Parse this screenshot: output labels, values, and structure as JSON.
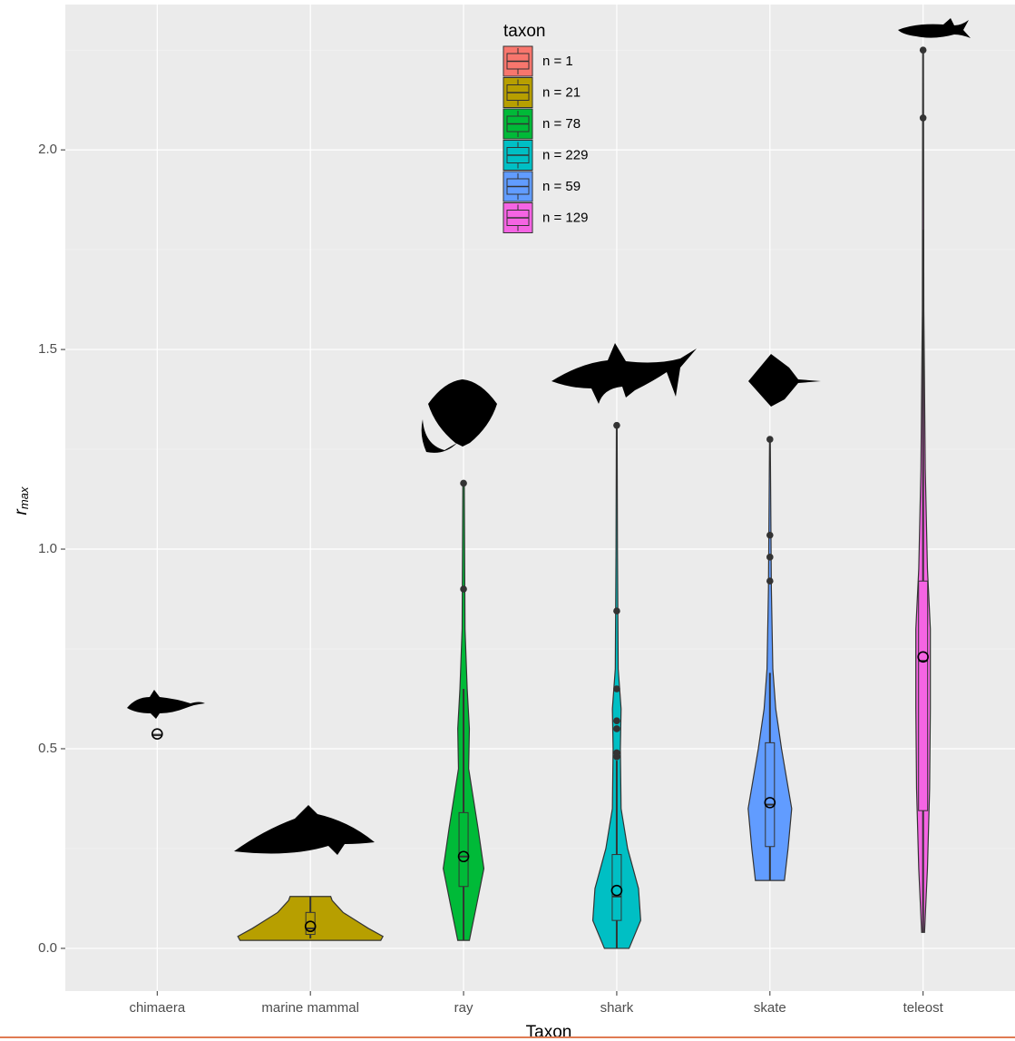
{
  "chart_data": {
    "type": "violin",
    "x_label": "Taxon",
    "y_label": "r",
    "y_label_sub": "max",
    "legend_title": "taxon",
    "legend_position": "top",
    "categories": [
      "chimaera",
      "marine mammal",
      "ray",
      "shark",
      "skate",
      "teleost"
    ],
    "ylim": [
      -0.107,
      2.364
    ],
    "yticks": [
      {
        "value": 0,
        "label": "0.0"
      },
      0.5,
      {
        "value": 1,
        "label": "1.0"
      },
      1.5,
      {
        "value": 2,
        "label": "2.0"
      }
    ],
    "minor_yticks": [
      0.25,
      0.75,
      1.25,
      1.75,
      2.25
    ],
    "grid": true,
    "series": [
      {
        "name": "n = 1",
        "color": "#F8766D",
        "box": [
          0.535,
          0.535,
          0.535,
          0.535,
          0.535
        ],
        "mean": 0.537,
        "outliers": [],
        "violin": {
          "y": [],
          "density": []
        }
      },
      {
        "name": "n = 21",
        "color": "#B79F00",
        "box": [
          0.025,
          0.035,
          0.05,
          0.09,
          0.13
        ],
        "mean": 0.055,
        "outliers": [],
        "violin": {
          "y": [
            0.02,
            0.03,
            0.05,
            0.09,
            0.12,
            0.13
          ],
          "density": [
            0.97,
            1.0,
            0.8,
            0.45,
            0.3,
            0.28
          ]
        }
      },
      {
        "name": "n = 78",
        "color": "#00BA38",
        "box": [
          0.02,
          0.155,
          0.23,
          0.34,
          0.65
        ],
        "mean": 0.23,
        "outliers": [
          0.9,
          1.165
        ],
        "violin": {
          "y": [
            0.02,
            0.1,
            0.2,
            0.3,
            0.45,
            0.55,
            0.65,
            0.8,
            1.165
          ],
          "density": [
            0.08,
            0.17,
            0.28,
            0.2,
            0.07,
            0.08,
            0.05,
            0.02,
            0.01
          ]
        }
      },
      {
        "name": "n = 229",
        "color": "#00BFC4",
        "box": [
          0.0,
          0.07,
          0.13,
          0.235,
          0.47
        ],
        "mean": 0.145,
        "outliers": [
          0.48,
          0.49,
          0.55,
          0.57,
          0.65,
          0.845,
          1.31
        ],
        "violin": {
          "y": [
            0.0,
            0.07,
            0.15,
            0.25,
            0.35,
            0.5,
            0.6,
            0.7,
            1.0,
            1.31
          ],
          "density": [
            0.17,
            0.33,
            0.3,
            0.15,
            0.06,
            0.05,
            0.06,
            0.02,
            0.01,
            0.005
          ]
        }
      },
      {
        "name": "n = 59",
        "color": "#619CFF",
        "box": [
          0.17,
          0.255,
          0.36,
          0.515,
          0.69
        ],
        "mean": 0.365,
        "outliers": [
          0.92,
          0.98,
          1.035,
          1.275
        ],
        "violin": {
          "y": [
            0.17,
            0.25,
            0.35,
            0.5,
            0.6,
            0.7,
            0.9,
            1.275
          ],
          "density": [
            0.2,
            0.25,
            0.3,
            0.16,
            0.08,
            0.04,
            0.02,
            0.005
          ]
        }
      },
      {
        "name": "n = 129",
        "color": "#F564E3",
        "box": [
          0.04,
          0.345,
          0.72,
          0.92,
          1.8
        ],
        "mean": 0.73,
        "outliers": [
          2.08,
          2.25
        ],
        "violin": {
          "y": [
            0.04,
            0.2,
            0.4,
            0.6,
            0.8,
            0.95,
            1.2,
            1.6,
            2.25
          ],
          "density": [
            0.02,
            0.06,
            0.09,
            0.1,
            0.1,
            0.06,
            0.03,
            0.01,
            0.005
          ]
        }
      }
    ]
  }
}
